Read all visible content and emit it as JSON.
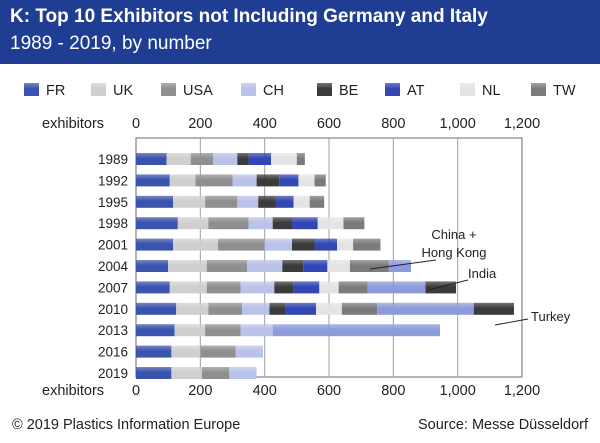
{
  "header": {
    "title": "K: Top 10 Exhibitors not Including Germany and Italy",
    "subtitle": "1989 - 2019, by number"
  },
  "footer": {
    "copyright": "© 2019 Plastics Information Europe",
    "source": "Source: Messe Düsseldorf"
  },
  "colors": {
    "banner": "#1f3d93",
    "FR": "#3a53ac",
    "UK": "#cfcfcf",
    "USA": "#8f8f8f",
    "CH": "#b9c2e9",
    "BE": "#3b3b3b",
    "AT": "#3246b4",
    "NL": "#e4e4e4",
    "TW": "#7b7b7b",
    "China + Hong Kong": "#8d9bdb",
    "India": "#3b3b3b",
    "Turkey": "#3246b4"
  },
  "chart_data": {
    "type": "bar",
    "orientation": "horizontal",
    "stacked": true,
    "axis_label": "exhibitors",
    "xlim": [
      0,
      1200
    ],
    "ticks": [
      0,
      200,
      400,
      600,
      800,
      1000,
      1200
    ],
    "tick_labels": [
      "0",
      "200",
      "400",
      "600",
      "800",
      "1,000",
      "1,200"
    ],
    "grid": true,
    "legend_position": "top",
    "legend": [
      "FR",
      "UK",
      "USA",
      "CH",
      "BE",
      "AT",
      "NL",
      "TW"
    ],
    "categories": [
      "1989",
      "1992",
      "1995",
      "1998",
      "2001",
      "2004",
      "2007",
      "2010",
      "2013",
      "2016",
      "2019"
    ],
    "series": [
      {
        "name": "FR",
        "values": [
          95,
          105,
          115,
          130,
          115,
          100,
          105,
          125,
          120,
          110,
          110
        ]
      },
      {
        "name": "UK",
        "values": [
          75,
          80,
          100,
          95,
          140,
          120,
          115,
          100,
          95,
          90,
          95
        ]
      },
      {
        "name": "USA",
        "values": [
          70,
          115,
          100,
          125,
          145,
          125,
          105,
          105,
          110,
          110,
          85
        ]
      },
      {
        "name": "CH",
        "values": [
          75,
          75,
          65,
          75,
          85,
          110,
          105,
          85,
          100,
          85,
          85
        ]
      },
      {
        "name": "BE",
        "values": [
          35,
          70,
          55,
          60,
          70,
          65,
          60,
          50,
          0,
          0,
          0
        ]
      },
      {
        "name": "AT",
        "values": [
          70,
          60,
          55,
          80,
          70,
          75,
          80,
          95,
          0,
          0,
          0
        ]
      },
      {
        "name": "NL",
        "values": [
          80,
          50,
          50,
          80,
          50,
          70,
          60,
          80,
          0,
          0,
          0
        ]
      },
      {
        "name": "TW",
        "values": [
          25,
          35,
          45,
          65,
          85,
          120,
          90,
          110,
          0,
          0,
          0
        ]
      },
      {
        "name": "China + Hong Kong",
        "values": [
          0,
          0,
          0,
          0,
          0,
          70,
          180,
          300,
          520,
          0,
          0
        ]
      },
      {
        "name": "India",
        "values": [
          0,
          0,
          0,
          0,
          0,
          0,
          95,
          125,
          0,
          0,
          0
        ]
      },
      {
        "name": "Turkey",
        "values": [
          0,
          0,
          0,
          0,
          0,
          0,
          0,
          0,
          0,
          0,
          0
        ]
      }
    ],
    "annotations": [
      "China +\nHong Kong",
      "India",
      "Turkey"
    ]
  }
}
